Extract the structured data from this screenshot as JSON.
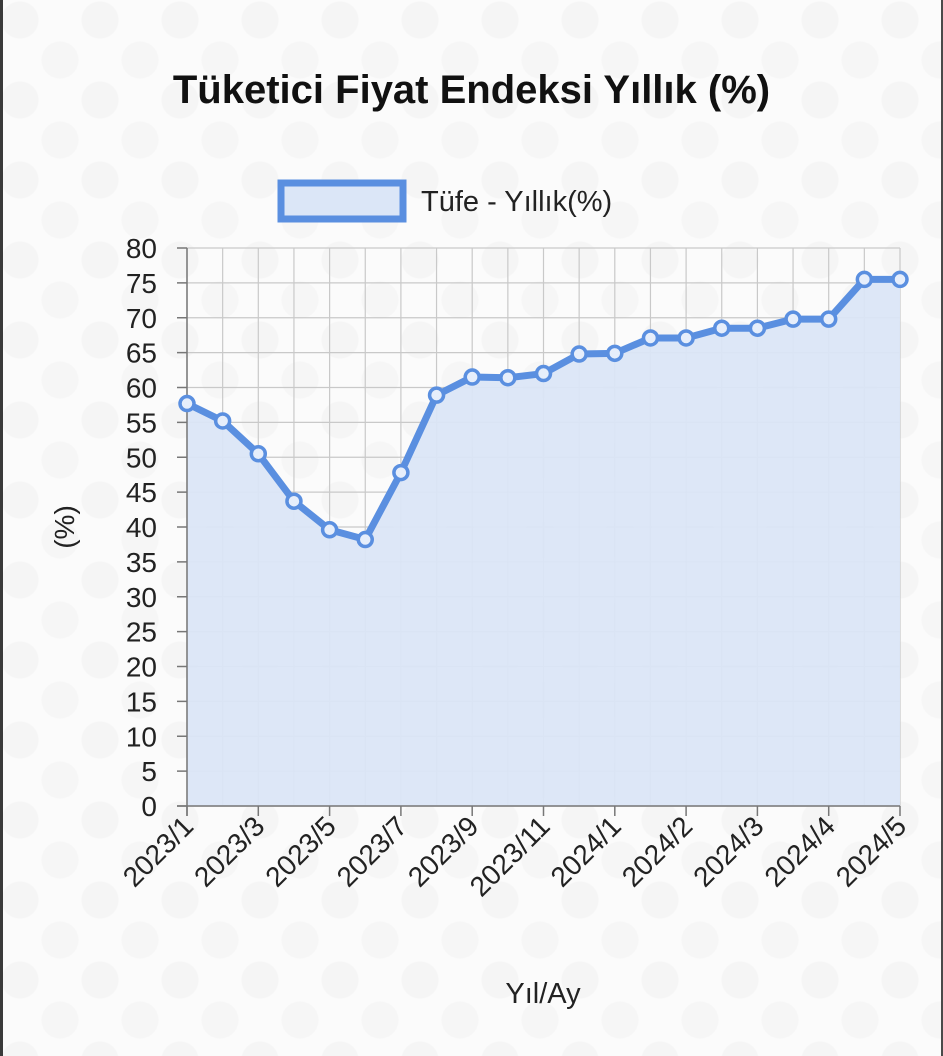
{
  "chart_data": {
    "type": "area",
    "title": "Tüketici Fiyat Endeksi Yıllık (%)",
    "xlabel": "Yıl/Ay",
    "ylabel": "(%)",
    "ylim": [
      0,
      80
    ],
    "ystep": 5,
    "grid": true,
    "legend_position": "top-center",
    "tick_labels": [
      "2023/1",
      "2023/3",
      "2023/5",
      "2023/7",
      "2023/9",
      "2023/11",
      "2024/1",
      "2024/2",
      "2024/3",
      "2024/4",
      "2024/5"
    ],
    "series": [
      {
        "name": "Tüfe - Yıllık(%)",
        "color": "#5a8fe0",
        "fill": "#dbe6f7",
        "values": [
          57.7,
          55.2,
          50.5,
          43.7,
          39.6,
          38.2,
          47.8,
          58.9,
          61.5,
          61.4,
          62.0,
          64.8,
          64.9,
          67.1,
          67.1,
          68.5,
          68.5,
          69.8,
          69.8,
          75.5,
          75.5
        ]
      }
    ]
  }
}
